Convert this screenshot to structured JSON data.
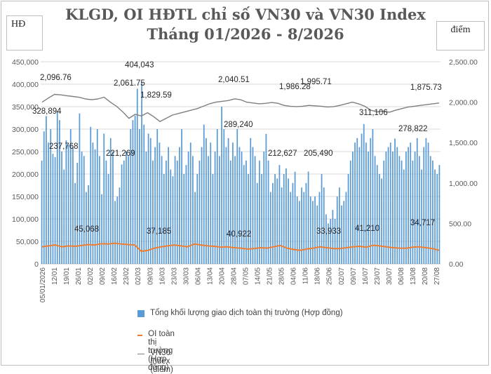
{
  "title_line1": "KLGD, OI HĐTL chỉ số VN30 và VN30 Index",
  "title_line2": "Tháng 01/2026 - 8/2026",
  "left_unit": "HĐ",
  "right_unit": "điểm",
  "colors": {
    "volume": "#5b9bd5",
    "oi": "#ed7d31",
    "index": "#7f7f7f",
    "grid": "#d9d9d9",
    "axis_text": "#595959"
  },
  "chart_data": {
    "type": "bar",
    "title": "KLGD, OI HĐTL chỉ số VN30 và VN30 Index",
    "subtitle": "Tháng 01/2026 - 8/2026",
    "ylabel": "HĐ",
    "y2label": "điểm",
    "ylim": [
      0,
      450000
    ],
    "y2lim": [
      0,
      2500
    ],
    "y_ticks": [
      "0",
      "50,000",
      "100,000",
      "150,000",
      "200,000",
      "250,000",
      "300,000",
      "350,000",
      "400,000",
      "450,000"
    ],
    "y2_ticks": [
      "0.00",
      "500.00",
      "1,000.00",
      "1,500.00",
      "2,000.00",
      "2,500.00"
    ],
    "x_ticks": [
      "05/01/2026",
      "12/01",
      "19/01",
      "26/01",
      "02/02",
      "09/02",
      "16/02",
      "23/02",
      "02/03",
      "09/03",
      "16/03",
      "23/03",
      "30/03",
      "06/04",
      "13/04",
      "20/04",
      "28/04",
      "07/05",
      "14/05",
      "21/05",
      "28/05",
      "04/06",
      "11/06",
      "18/06",
      "25/06",
      "02/07",
      "09/07",
      "16/07",
      "23/07",
      "30/07",
      "06/08",
      "13/08",
      "20/08",
      "27/08"
    ],
    "legend": [
      "Tổng khối lượng giao dịch toàn thị trường (Hợp đồng)",
      "OI toàn thị trường (Hợp đồng)",
      "VN30 Index (điểm)"
    ],
    "legend_position": "bottom",
    "grid": true,
    "series": [
      {
        "name": "Tổng khối lượng giao dịch toàn thị trường (Hợp đồng)",
        "type": "bar",
        "axis": "left",
        "values": [
          230000,
          295000,
          328894,
          270000,
          300000,
          245000,
          237768,
          340000,
          320000,
          250000,
          210000,
          275000,
          265000,
          300000,
          260000,
          180000,
          225000,
          335000,
          250000,
          240000,
          160000,
          175000,
          305000,
          270000,
          255000,
          300000,
          240000,
          155000,
          290000,
          230000,
          200000,
          280000,
          250000,
          140000,
          150000,
          170000,
          221269,
          230000,
          250000,
          240000,
          300000,
          320000,
          330000,
          390000,
          300000,
          404043,
          310000,
          250000,
          290000,
          280000,
          230000,
          260000,
          300000,
          270000,
          240000,
          200000,
          230000,
          260000,
          210000,
          195000,
          240000,
          230000,
          260000,
          300000,
          200000,
          220000,
          250000,
          270000,
          240000,
          160000,
          200000,
          230000,
          260000,
          310000,
          280000,
          240000,
          270000,
          200000,
          250000,
          300000,
          240000,
          350000,
          300000,
          260000,
          280000,
          230000,
          270000,
          240000,
          300000,
          260000,
          250000,
          220000,
          230000,
          200000,
          280000,
          260000,
          240000,
          180000,
          230000,
          200000,
          250000,
          289240,
          230000,
          160000,
          180000,
          200000,
          190000,
          220000,
          170000,
          200000,
          212627,
          190000,
          160000,
          180000,
          205000,
          150000,
          140000,
          170000,
          160000,
          180000,
          205490,
          150000,
          140000,
          150000,
          130000,
          160000,
          200000,
          170000,
          110000,
          90000,
          100000,
          120000,
          100000,
          150000,
          170000,
          130000,
          140000,
          160000,
          200000,
          230000,
          250000,
          270000,
          280000,
          260000,
          290000,
          311106,
          270000,
          250000,
          280000,
          300000,
          240000,
          220000,
          200000,
          190000,
          230000,
          250000,
          260000,
          270000,
          250000,
          278822,
          260000,
          240000,
          230000,
          210000,
          250000,
          260000,
          270000,
          230000,
          250000,
          280000,
          240000,
          210000,
          260000,
          280000,
          270000,
          240000,
          230000,
          210000,
          200000,
          220000
        ]
      },
      {
        "name": "OI toàn thị trường (Hợp đồng)",
        "type": "line",
        "axis": "left",
        "values": [
          38000,
          40000,
          42000,
          38000,
          40000,
          39000,
          41000,
          43000,
          42000,
          45068,
          44000,
          46000,
          44000,
          43000,
          42000,
          28000,
          30000,
          35000,
          38000,
          40000,
          42000,
          40000,
          38000,
          44000,
          42000,
          40000,
          39000,
          37185,
          38000,
          36000,
          35000,
          33000,
          34000,
          36000,
          35000,
          38000,
          40922,
          35000,
          32000,
          30000,
          33000,
          35000,
          38000,
          36000,
          33933,
          34000,
          36000,
          38000,
          39000,
          37000,
          41210,
          40000,
          38000,
          36000,
          35000,
          34717,
          37000,
          38000,
          36000,
          34000,
          30000
        ]
      },
      {
        "name": "VN30 Index (điểm)",
        "type": "line",
        "axis": "right",
        "values": [
          2000,
          2050,
          2096.76,
          2090,
          2080,
          2070,
          2060,
          2040,
          2030,
          2040,
          2061.75,
          2000,
          1950,
          1880,
          1800,
          1850,
          1829.59,
          1870,
          1820,
          1760,
          1800,
          1840,
          1860,
          1880,
          1900,
          1920,
          1950,
          1980,
          2000,
          2010,
          2020,
          2040.51,
          2030,
          2000,
          1990,
          1980,
          1985,
          1995.71,
          1986.28,
          1960,
          1950,
          1945,
          1950,
          1960,
          1955,
          1950,
          1940,
          1945,
          1960,
          1980,
          2000,
          1980,
          1950,
          1900,
          1880,
          1890,
          1875.73,
          1900,
          1920,
          1940,
          1950,
          1960,
          1970,
          1980,
          1990
        ]
      }
    ],
    "annotations": [
      {
        "text": "328,894",
        "series": "volume"
      },
      {
        "text": "237,768",
        "series": "volume"
      },
      {
        "text": "221,269",
        "series": "volume"
      },
      {
        "text": "404,043",
        "series": "volume"
      },
      {
        "text": "289,240",
        "series": "volume"
      },
      {
        "text": "212,627",
        "series": "volume"
      },
      {
        "text": "205,490",
        "series": "volume"
      },
      {
        "text": "311,106",
        "series": "volume"
      },
      {
        "text": "278,822",
        "series": "volume"
      },
      {
        "text": "45,068",
        "series": "oi"
      },
      {
        "text": "37,185",
        "series": "oi"
      },
      {
        "text": "40,922",
        "series": "oi"
      },
      {
        "text": "33,933",
        "series": "oi"
      },
      {
        "text": "41,210",
        "series": "oi"
      },
      {
        "text": "34,717",
        "series": "oi"
      },
      {
        "text": "2,096.76",
        "series": "index"
      },
      {
        "text": "2,061.75",
        "series": "index"
      },
      {
        "text": "1,829.59",
        "series": "index"
      },
      {
        "text": "2,040.51",
        "series": "index"
      },
      {
        "text": "1,986.28",
        "series": "index"
      },
      {
        "text": "1,995.71",
        "series": "index"
      },
      {
        "text": "1,875.73",
        "series": "index"
      }
    ]
  }
}
